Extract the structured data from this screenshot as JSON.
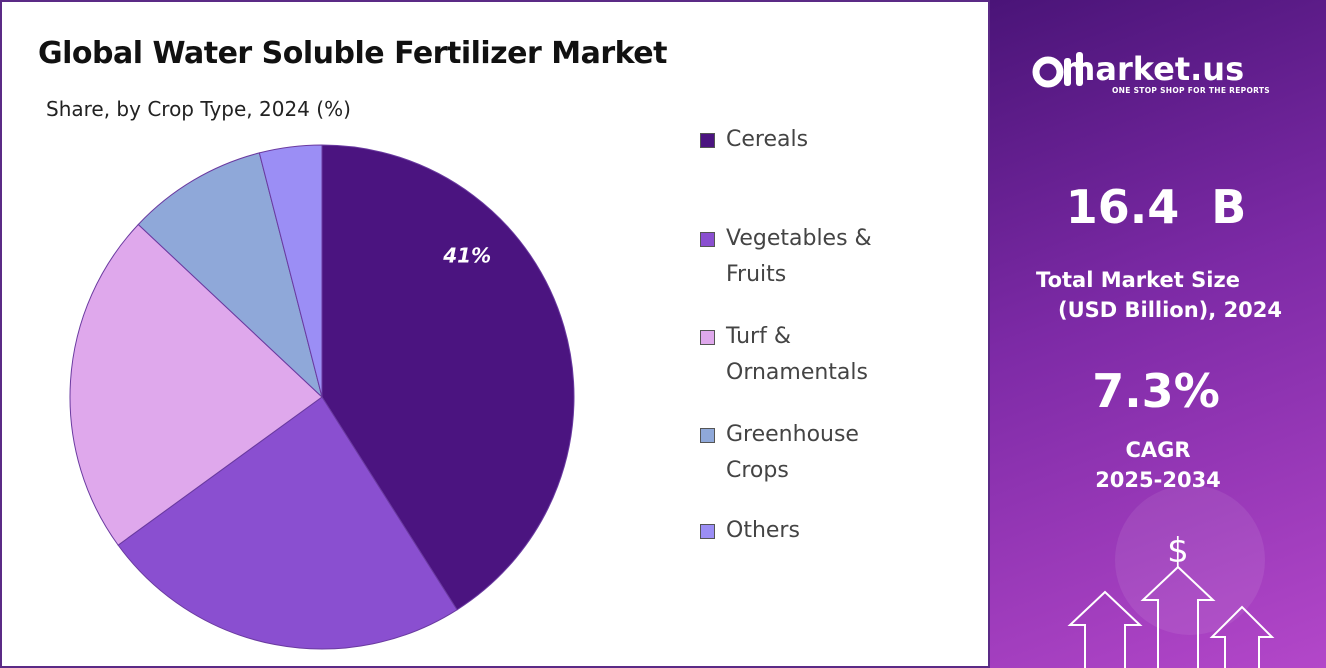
{
  "chart_data": {
    "type": "pie",
    "title": "Global Water Soluble Fertilizer Market",
    "subtitle": "Share, by Crop Type, 2024 (%)",
    "categories": [
      "Cereals",
      "Vegetables & Fruits",
      "Turf & Ornamentals",
      "Greenhouse Crops",
      "Others"
    ],
    "values": [
      41,
      24,
      22,
      9,
      4
    ],
    "value_labels": [
      "41%",
      null,
      null,
      null,
      null
    ],
    "colors": [
      "#4b1480",
      "#8a4fd0",
      "#dfa8ec",
      "#8fa8d9",
      "#9b8ef5"
    ],
    "legend": "right"
  },
  "sidebar": {
    "brand": "market.us",
    "tagline": "ONE STOP SHOP FOR THE REPORTS",
    "market_size": "16.4  B",
    "market_size_label": "Total Market Size",
    "market_size_unit": "(USD Billion), 2024",
    "cagr": "7.3%",
    "cagr_label": "CAGR",
    "cagr_period": "2025-2034"
  }
}
